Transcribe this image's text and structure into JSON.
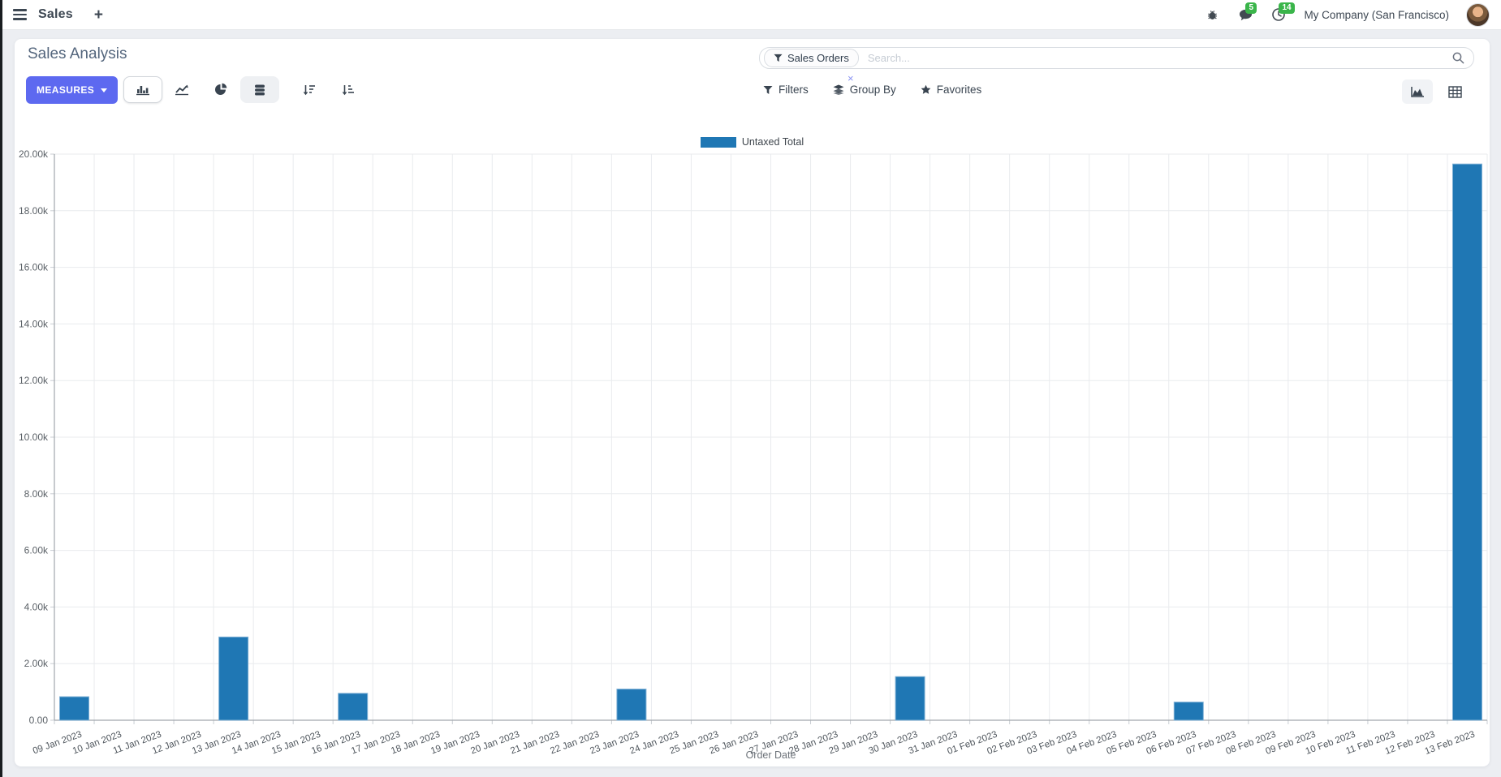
{
  "navbar": {
    "brand": "Sales",
    "new_tab_label": "+",
    "message_count": "5",
    "activity_count": "14",
    "company": "My Company (San Francisco)"
  },
  "control_panel": {
    "title": "Sales Analysis",
    "measures_label": "MEASURES",
    "search": {
      "facet": "Sales Orders",
      "facet_remove_label": "×",
      "placeholder": "Search..."
    },
    "filters_label": "Filters",
    "group_by_label": "Group By",
    "favorites_label": "Favorites"
  },
  "chart_data": {
    "type": "bar",
    "title": "",
    "xlabel": "Order Date",
    "ylabel": "",
    "ylim": [
      0,
      20000
    ],
    "ytick_step": 2000,
    "grid": true,
    "legend_position": "top",
    "bar_color": "#1f77b4",
    "bar_border_color": "#7eb0d5",
    "categories": [
      "09 Jan 2023",
      "10 Jan 2023",
      "11 Jan 2023",
      "12 Jan 2023",
      "13 Jan 2023",
      "14 Jan 2023",
      "15 Jan 2023",
      "16 Jan 2023",
      "17 Jan 2023",
      "18 Jan 2023",
      "19 Jan 2023",
      "20 Jan 2023",
      "21 Jan 2023",
      "22 Jan 2023",
      "23 Jan 2023",
      "24 Jan 2023",
      "25 Jan 2023",
      "26 Jan 2023",
      "27 Jan 2023",
      "28 Jan 2023",
      "29 Jan 2023",
      "30 Jan 2023",
      "31 Jan 2023",
      "01 Feb 2023",
      "02 Feb 2023",
      "03 Feb 2023",
      "04 Feb 2023",
      "05 Feb 2023",
      "06 Feb 2023",
      "07 Feb 2023",
      "08 Feb 2023",
      "09 Feb 2023",
      "10 Feb 2023",
      "11 Feb 2023",
      "12 Feb 2023",
      "13 Feb 2023"
    ],
    "series": [
      {
        "name": "Untaxed Total",
        "values": [
          830,
          0,
          0,
          0,
          2940,
          0,
          0,
          950,
          0,
          0,
          0,
          0,
          0,
          0,
          1100,
          0,
          0,
          0,
          0,
          0,
          0,
          1540,
          0,
          0,
          0,
          0,
          0,
          0,
          640,
          0,
          0,
          0,
          0,
          0,
          0,
          19650
        ]
      }
    ]
  },
  "colors": {
    "accent": "#5d69f0",
    "bar": "#1f77b4",
    "badge_green": "#3ab54a",
    "grid": "#e9ebee",
    "axis": "#a2a7ad"
  }
}
